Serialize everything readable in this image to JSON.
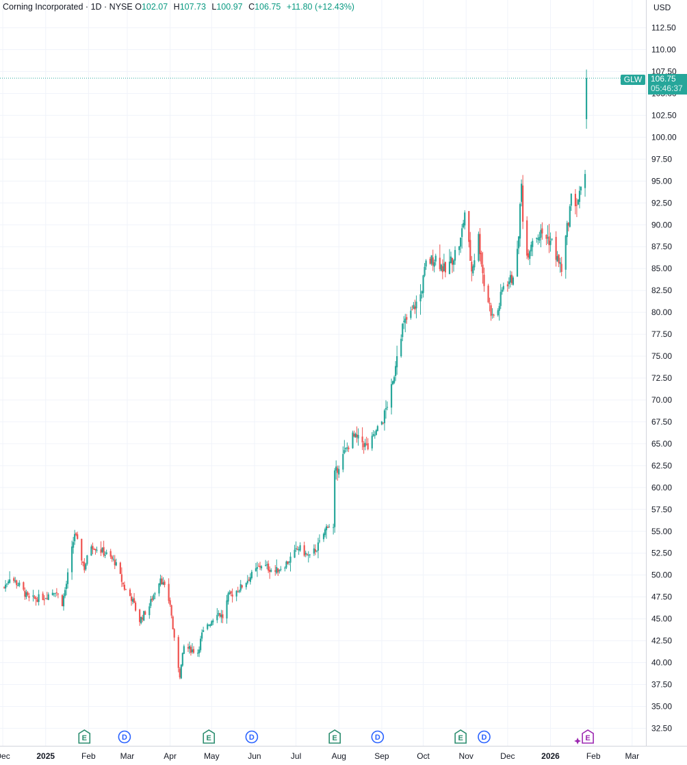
{
  "legend": {
    "symbol_name": "Corning Incorporated",
    "interval": "1D",
    "exchange": "NYSE",
    "o_label": "O",
    "o_value": "102.07",
    "h_label": "H",
    "h_value": "107.73",
    "l_label": "L",
    "l_value": "100.97",
    "c_label": "C",
    "c_value": "106.75",
    "change": "+11.80 (+12.43%)"
  },
  "currency": "USD",
  "last_price": {
    "ticker": "GLW",
    "price": "106.75",
    "countdown": "05:46:37"
  },
  "colors": {
    "up": "#26a69a",
    "down": "#ef5350",
    "earnings": "#2a8c6e",
    "dividend": "#2962ff",
    "upcoming": "#9c27b0",
    "grid": "#f0f3fa"
  },
  "chart_data": {
    "type": "candlestick",
    "ylim": [
      30.5,
      114.5
    ],
    "y_ticks": [
      "112.50",
      "110.00",
      "107.50",
      "105.00",
      "102.50",
      "100.00",
      "97.50",
      "95.00",
      "92.50",
      "90.00",
      "87.50",
      "85.00",
      "82.50",
      "80.00",
      "77.50",
      "75.00",
      "72.50",
      "70.00",
      "67.50",
      "65.00",
      "62.50",
      "60.00",
      "57.50",
      "55.00",
      "52.50",
      "50.00",
      "47.50",
      "45.00",
      "42.50",
      "40.00",
      "37.50",
      "35.00",
      "32.50"
    ],
    "x_labels": [
      "Dec",
      "2025",
      "Feb",
      "Mar",
      "Apr",
      "May",
      "Jun",
      "Jul",
      "Aug",
      "Sep",
      "Oct",
      "Nov",
      "Dec",
      "2026",
      "Feb",
      "Mar"
    ],
    "x_label_dates": [
      "2024-12-01",
      "2025-01-01",
      "2025-02-01",
      "2025-03-01",
      "2025-04-01",
      "2025-05-01",
      "2025-06-01",
      "2025-07-01",
      "2025-08-01",
      "2025-09-01",
      "2025-10-01",
      "2025-11-01",
      "2025-12-01",
      "2026-01-01",
      "2026-02-01",
      "2026-03-01"
    ],
    "x_range": [
      "2024-11-29",
      "2026-03-11"
    ],
    "events": [
      {
        "type": "E",
        "date": "2025-01-29"
      },
      {
        "type": "D",
        "date": "2025-02-27"
      },
      {
        "type": "E",
        "date": "2025-04-29"
      },
      {
        "type": "D",
        "date": "2025-05-30"
      },
      {
        "type": "E",
        "date": "2025-07-29"
      },
      {
        "type": "D",
        "date": "2025-08-29"
      },
      {
        "type": "E",
        "date": "2025-10-28"
      },
      {
        "type": "D",
        "date": "2025-11-14"
      },
      {
        "type": "E",
        "date": "2026-01-28",
        "upcoming": true
      }
    ],
    "last_bar": {
      "date": "2026-01-27",
      "open": 102.07,
      "high": 107.73,
      "low": 100.97,
      "close": 106.75
    },
    "close_anchors": [
      [
        "2024-12-02",
        48.6
      ],
      [
        "2024-12-06",
        49.8
      ],
      [
        "2024-12-13",
        48.8
      ],
      [
        "2024-12-20",
        47.2
      ],
      [
        "2024-12-31",
        47.5
      ],
      [
        "2025-01-08",
        48.3
      ],
      [
        "2025-01-13",
        46.8
      ],
      [
        "2025-01-16",
        49.0
      ],
      [
        "2025-01-22",
        54.8
      ],
      [
        "2025-01-29",
        50.8
      ],
      [
        "2025-02-03",
        53.5
      ],
      [
        "2025-02-12",
        52.6
      ],
      [
        "2025-02-20",
        51.5
      ],
      [
        "2025-02-27",
        48.5
      ],
      [
        "2025-03-04",
        47.4
      ],
      [
        "2025-03-10",
        44.8
      ],
      [
        "2025-03-17",
        46.5
      ],
      [
        "2025-03-25",
        49.8
      ],
      [
        "2025-04-01",
        46.7
      ],
      [
        "2025-04-04",
        42.5
      ],
      [
        "2025-04-08",
        38.6
      ],
      [
        "2025-04-11",
        41.8
      ],
      [
        "2025-04-21",
        41.2
      ],
      [
        "2025-04-24",
        43.2
      ],
      [
        "2025-05-05",
        45.8
      ],
      [
        "2025-05-09",
        45.2
      ],
      [
        "2025-05-13",
        47.5
      ],
      [
        "2025-05-22",
        48.6
      ],
      [
        "2025-05-30",
        50.0
      ],
      [
        "2025-06-06",
        51.2
      ],
      [
        "2025-06-16",
        50.4
      ],
      [
        "2025-06-25",
        51.5
      ],
      [
        "2025-07-03",
        53.1
      ],
      [
        "2025-07-11",
        52.0
      ],
      [
        "2025-07-18",
        53.6
      ],
      [
        "2025-07-24",
        55.8
      ],
      [
        "2025-07-28",
        55.3
      ],
      [
        "2025-07-29",
        61.5
      ],
      [
        "2025-08-04",
        63.6
      ],
      [
        "2025-08-11",
        65.8
      ],
      [
        "2025-08-18",
        65.2
      ],
      [
        "2025-08-22",
        64.5
      ],
      [
        "2025-08-27",
        66.0
      ],
      [
        "2025-09-02",
        67.8
      ],
      [
        "2025-09-09",
        71.8
      ],
      [
        "2025-09-12",
        75.5
      ],
      [
        "2025-09-16",
        78.4
      ],
      [
        "2025-09-22",
        79.8
      ],
      [
        "2025-09-29",
        82.0
      ],
      [
        "2025-10-03",
        85.5
      ],
      [
        "2025-10-10",
        86.3
      ],
      [
        "2025-10-17",
        84.6
      ],
      [
        "2025-10-24",
        86.8
      ],
      [
        "2025-10-28",
        88.2
      ],
      [
        "2025-10-31",
        91.5
      ],
      [
        "2025-11-05",
        84.8
      ],
      [
        "2025-11-10",
        88.6
      ],
      [
        "2025-11-14",
        83.2
      ],
      [
        "2025-11-20",
        79.5
      ],
      [
        "2025-11-24",
        80.2
      ],
      [
        "2025-11-28",
        83.2
      ],
      [
        "2025-12-04",
        83.8
      ],
      [
        "2025-12-08",
        86.6
      ],
      [
        "2025-12-11",
        94.5
      ],
      [
        "2025-12-12",
        91.0
      ],
      [
        "2025-12-15",
        86.5
      ],
      [
        "2025-12-19",
        88.6
      ],
      [
        "2025-12-26",
        89.0
      ],
      [
        "2026-01-02",
        88.0
      ],
      [
        "2026-01-06",
        86.0
      ],
      [
        "2026-01-09",
        85.0
      ],
      [
        "2026-01-13",
        89.5
      ],
      [
        "2026-01-16",
        93.0
      ],
      [
        "2026-01-20",
        92.5
      ],
      [
        "2026-01-26",
        94.95
      ]
    ]
  }
}
